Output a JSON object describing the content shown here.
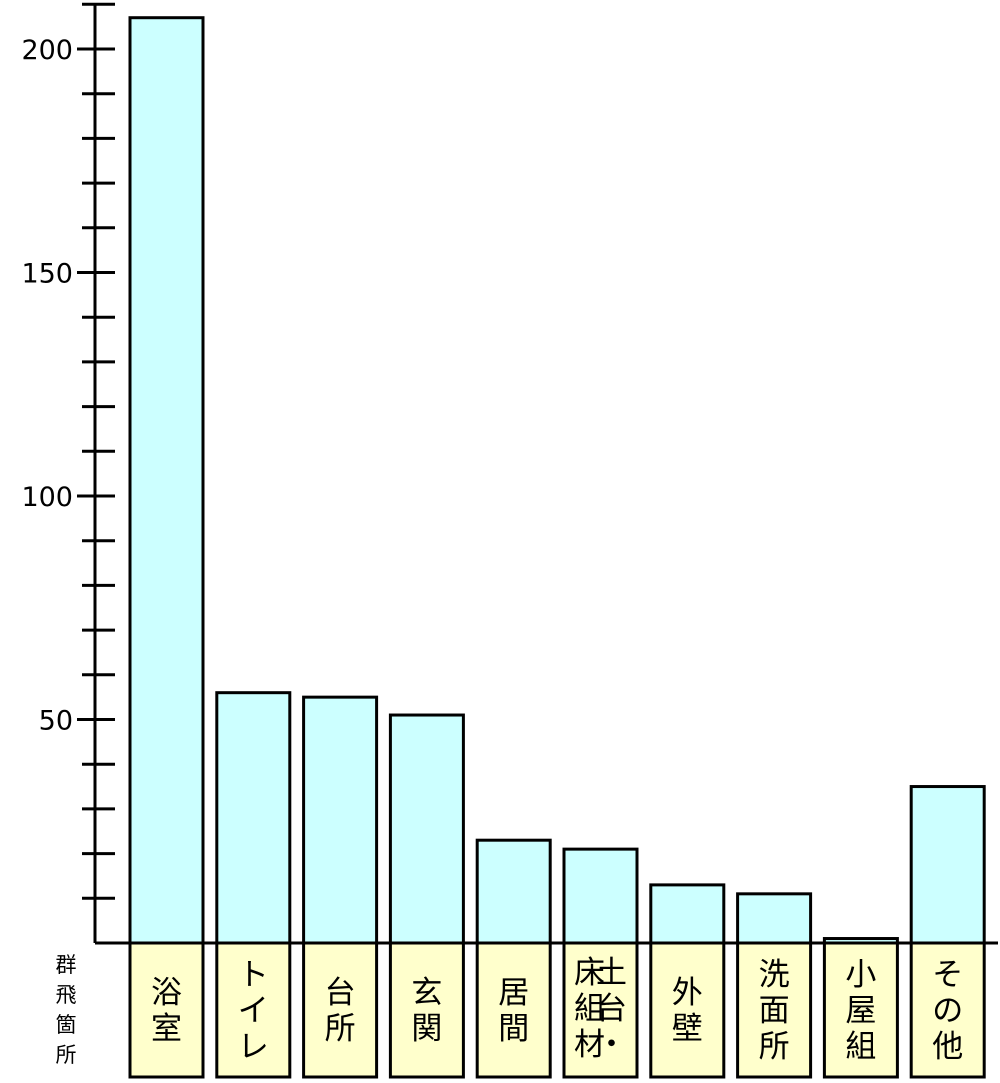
{
  "chart_data": {
    "type": "bar",
    "categories": [
      "浴室",
      "トイレ",
      "台所",
      "玄関",
      "居間",
      "土台・床組材",
      "外壁",
      "洗面所",
      "小屋組",
      "その他"
    ],
    "category_lines": [
      [
        "浴室"
      ],
      [
        "トイレ"
      ],
      [
        "台所"
      ],
      [
        "玄関"
      ],
      [
        "居間"
      ],
      [
        "土台・",
        "床組材"
      ],
      [
        "外壁"
      ],
      [
        "洗面所"
      ],
      [
        "小屋組"
      ],
      [
        "その他"
      ]
    ],
    "values": [
      207,
      56,
      55,
      51,
      23,
      21,
      13,
      11,
      1,
      35
    ],
    "xlabel": "群飛箇所",
    "ylabel": "",
    "ylim": [
      0,
      210
    ],
    "yticks": [
      50,
      100,
      150,
      200
    ],
    "minor_tick_step": 10,
    "grid": false,
    "colors": {
      "bar_fill": "#ccffff",
      "label_fill": "#ffffcc",
      "stroke": "#000000"
    }
  }
}
